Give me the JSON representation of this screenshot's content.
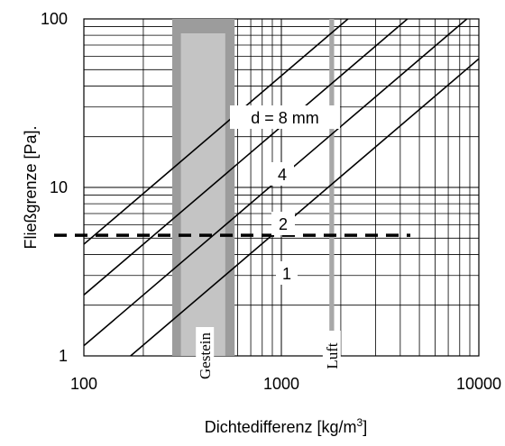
{
  "chart_data": {
    "type": "line",
    "x_scale": "log",
    "y_scale": "log",
    "xlim": [
      100,
      10000
    ],
    "ylim": [
      1,
      100
    ],
    "xlabel": "Dichtedifferenz  [kg/m",
    "xlabel_sup": "3",
    "xlabel_end": "]",
    "ylabel": "Fließgrenze  [Pa].",
    "x_ticks": [
      {
        "value": 100,
        "label": "100"
      },
      {
        "value": 1000,
        "label": "1000"
      },
      {
        "value": 10000,
        "label": "10000"
      }
    ],
    "y_ticks": [
      {
        "value": 1,
        "label": "1"
      },
      {
        "value": 10,
        "label": "10"
      },
      {
        "value": 100,
        "label": "100"
      }
    ],
    "grid": true,
    "series": [
      {
        "name": "d = 8 mm",
        "x": [
          100,
          10000
        ],
        "y": [
          4.6,
          460
        ]
      },
      {
        "name": "4",
        "x": [
          100,
          10000
        ],
        "y": [
          2.3,
          230
        ]
      },
      {
        "name": "2",
        "x": [
          100,
          10000
        ],
        "y": [
          1.15,
          115
        ]
      },
      {
        "name": "1",
        "x": [
          100,
          10000
        ],
        "y": [
          0.58,
          58
        ]
      }
    ],
    "reference_line": {
      "y": 5.2,
      "x_range": [
        100,
        4500
      ],
      "style": "dashed"
    },
    "bands": [
      {
        "label": "Gestein",
        "x_range": [
          280,
          580
        ],
        "inner_x_range": [
          310,
          520
        ]
      },
      {
        "label": "Luft",
        "x_range": [
          1750,
          1850
        ]
      }
    ],
    "colors": {
      "lines": "#000000",
      "grid": "#000000",
      "gestein_outer": "#9c9c9c",
      "gestein_inner": "#c4c4c4",
      "luft": "#a8a8a8"
    }
  }
}
